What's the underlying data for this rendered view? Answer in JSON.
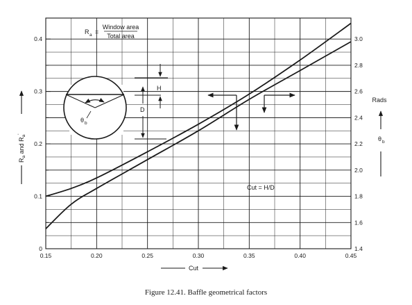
{
  "chart_data": {
    "type": "line",
    "caption": "Figure 12.41.   Baffle geometrical factors",
    "xlabel": "Cut",
    "y_left_label_main": "R",
    "y_left_sub1": "a",
    "y_left_mid": " and R",
    "y_left_sub2": "a",
    "y_left_prime": "'",
    "y_right_label": "Rads",
    "y_right_symbol": "θ",
    "y_right_symbol_sub": "b",
    "xlim": [
      0.15,
      0.45
    ],
    "ylim_left": [
      0,
      0.44
    ],
    "ylim_right": [
      1.4,
      3.16
    ],
    "x_ticks": [
      "0.15",
      "0.20",
      "0.25",
      "0.30",
      "0.35",
      "0.40",
      "0.45"
    ],
    "x_tick_values": [
      0.15,
      0.2,
      0.25,
      0.3,
      0.35,
      0.4,
      0.45
    ],
    "y_left_ticks": [
      "0",
      "0.1",
      "0.2",
      "0.3",
      "0.4"
    ],
    "y_left_tick_values": [
      0,
      0.1,
      0.2,
      0.3,
      0.4
    ],
    "y_right_ticks": [
      "1.4",
      "1.6",
      "1.8",
      "2.0",
      "2.2",
      "2.4",
      "2.6",
      "2.8",
      "3.0"
    ],
    "y_right_tick_values": [
      1.4,
      1.6,
      1.8,
      2.0,
      2.2,
      2.4,
      2.6,
      2.8,
      3.0
    ],
    "series": [
      {
        "axis": "right",
        "x": [
          0.15,
          0.175,
          0.2,
          0.25,
          0.3,
          0.35,
          0.4,
          0.45
        ],
        "y": [
          1.8,
          1.86,
          1.94,
          2.14,
          2.35,
          2.58,
          2.84,
          3.12
        ]
      },
      {
        "axis": "left",
        "x": [
          0.15,
          0.175,
          0.2,
          0.25,
          0.3,
          0.35,
          0.4,
          0.45
        ],
        "y": [
          0.038,
          0.085,
          0.115,
          0.17,
          0.225,
          0.285,
          0.34,
          0.395
        ]
      }
    ],
    "annotations": {
      "formula_lhs": "R",
      "formula_lhs_sub": "a",
      "formula_eq": "=",
      "formula_numerator": "Window area",
      "formula_denominator": "Total area",
      "cut_def": "Cut = H/D",
      "dim_h": "H",
      "dim_d": "D",
      "theta": "θ",
      "theta_sub": "b"
    }
  }
}
